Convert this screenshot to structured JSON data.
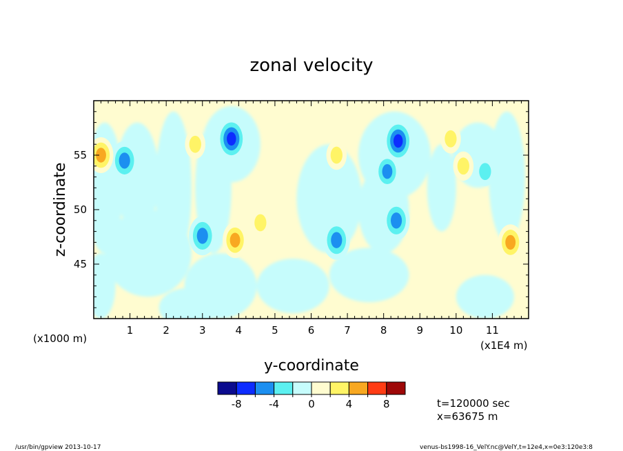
{
  "chart_data": {
    "type": "heatmap",
    "title": "zonal velocity",
    "xlabel": "y-coordinate",
    "ylabel": "z-coordinate",
    "x_range": [
      0,
      120000
    ],
    "y_range": [
      40000,
      60000
    ],
    "x_ticks": [
      "1",
      "2",
      "3",
      "4",
      "5",
      "6",
      "7",
      "8",
      "9",
      "10",
      "11"
    ],
    "y_ticks": [
      "45",
      "50",
      "55"
    ],
    "x_unit_note": "(x1E4 m)",
    "y_unit_note": "(x1000 m)",
    "colorbar": {
      "levels": [
        -10,
        -8,
        -6,
        -4,
        -2,
        0,
        2,
        4,
        6,
        8,
        10
      ],
      "tick_labels": [
        "-8",
        "-4",
        "0",
        "4",
        "8"
      ],
      "colors": [
        "#0b0b8e",
        "#0d2cff",
        "#1c8ff0",
        "#5cf0f0",
        "#c6fcfc",
        "#fffcd0",
        "#fff466",
        "#f8a821",
        "#ff3c14",
        "#9e0808"
      ]
    },
    "annotations": {
      "time": "t=120000 sec",
      "position": "x=63675 m"
    },
    "features": [
      {
        "y": 3.8,
        "z": 56.5,
        "value": -7
      },
      {
        "y": 8.4,
        "z": 56.3,
        "value": -7
      },
      {
        "y": 0.85,
        "z": 54.5,
        "value": -6
      },
      {
        "y": 3.0,
        "z": 47.6,
        "value": -6
      },
      {
        "y": 6.7,
        "z": 47.2,
        "value": -6
      },
      {
        "y": 8.35,
        "z": 49.0,
        "value": -6
      },
      {
        "y": 8.1,
        "z": 53.5,
        "value": -5
      },
      {
        "y": 10.8,
        "z": 53.5,
        "value": -3
      },
      {
        "y": 0.2,
        "z": 55.0,
        "value": 5
      },
      {
        "y": 3.9,
        "z": 47.2,
        "value": 5
      },
      {
        "y": 11.5,
        "z": 47.0,
        "value": 5
      },
      {
        "y": 6.7,
        "z": 55.0,
        "value": 3
      },
      {
        "y": 2.8,
        "z": 56.0,
        "value": 3
      },
      {
        "y": 4.6,
        "z": 48.8,
        "value": 3
      },
      {
        "y": 9.85,
        "z": 56.5,
        "value": 3
      },
      {
        "y": 10.2,
        "z": 54.0,
        "value": 3
      }
    ]
  },
  "footer": {
    "left": "/usr/bin/gpview   2013-10-17",
    "right": "venus-bs1998-16_VelY.nc@VelY,t=12e4,x=0e3:120e3:8"
  }
}
